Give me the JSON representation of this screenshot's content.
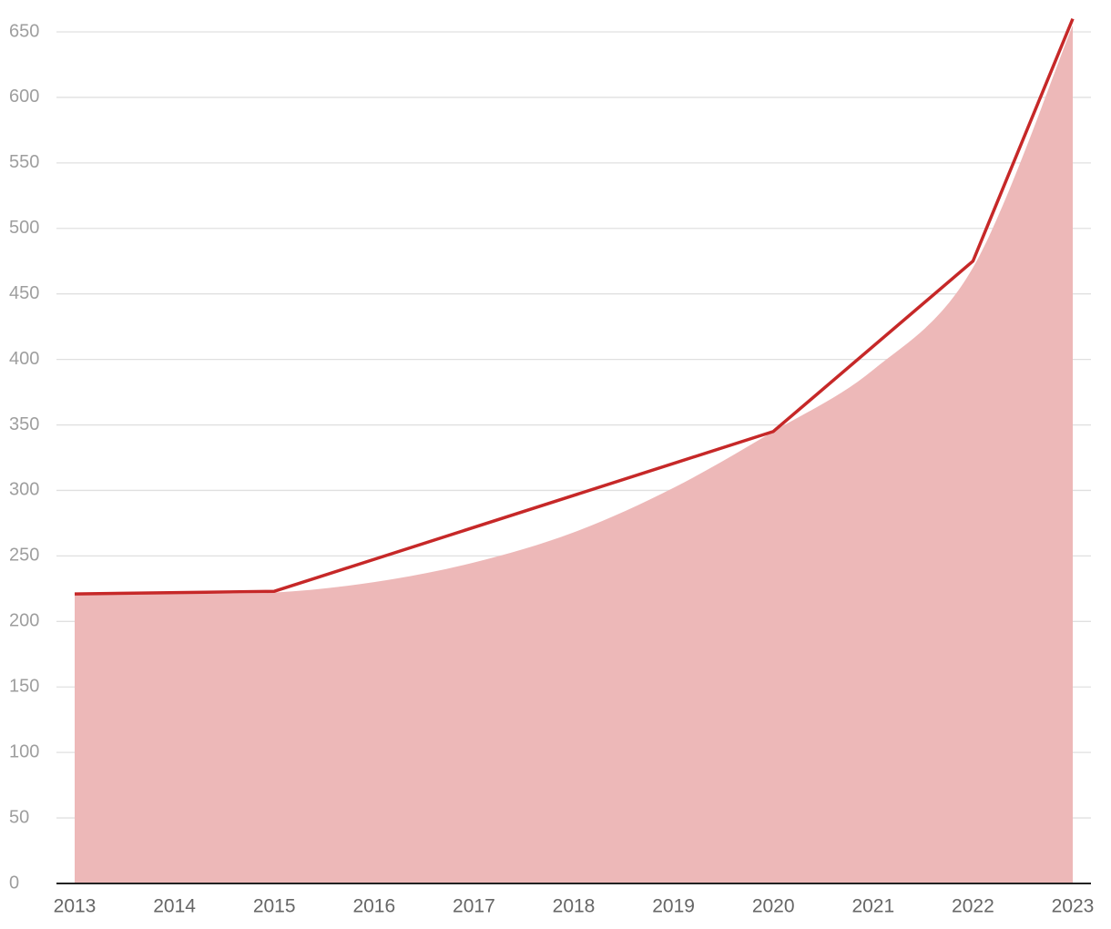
{
  "chart_data": {
    "type": "area",
    "xlim": [
      2013,
      2023
    ],
    "xticks": [
      2013,
      2014,
      2015,
      2016,
      2017,
      2018,
      2019,
      2020,
      2021,
      2022,
      2023
    ],
    "ylim": [
      0,
      660
    ],
    "yticks": [
      0,
      50,
      100,
      150,
      200,
      250,
      300,
      350,
      400,
      450,
      500,
      550,
      600,
      650
    ],
    "grid": true,
    "series": [
      {
        "type": "area",
        "color": "#edb8b8",
        "x": [
          2013,
          2014,
          2015,
          2016,
          2017,
          2018,
          2019,
          2020,
          2021,
          2022,
          2023
        ],
        "values": [
          220,
          221,
          222,
          230,
          245,
          268,
          302,
          345,
          392,
          470,
          655
        ]
      },
      {
        "type": "line",
        "color": "#c62828",
        "x": [
          2013,
          2015,
          2020,
          2022,
          2023
        ],
        "values": [
          221,
          223,
          345,
          475,
          660
        ]
      }
    ]
  }
}
